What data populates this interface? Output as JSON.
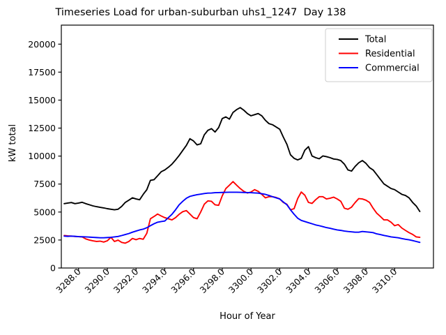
{
  "figure": {
    "title": "Timeseries Load for urban-suburban uhs1_1247  Day 138",
    "xlabel": "Hour of Year",
    "ylabel": "kW total"
  },
  "chart_data": {
    "type": "line",
    "title": "Timeseries Load for urban-suburban uhs1_1247  Day 138",
    "xlabel": "Hour of Year",
    "ylabel": "kW total",
    "grid": false,
    "legend_position": "upper right",
    "xlim": [
      3286.8,
      3312.7
    ],
    "ylim": [
      0,
      21700
    ],
    "x_tick_values": [
      3288,
      3290,
      3292,
      3294,
      3296,
      3298,
      3300,
      3302,
      3304,
      3306,
      3308,
      3310
    ],
    "x_tick_labels": [
      "3288.0",
      "3290.0",
      "3292.0",
      "3294.0",
      "3296.0",
      "3298.0",
      "3300.0",
      "3302.0",
      "3304.0",
      "3306.0",
      "3308.0",
      "3310.0"
    ],
    "y_tick_values": [
      0,
      2500,
      5000,
      7500,
      10000,
      12500,
      15000,
      17500,
      20000
    ],
    "y_tick_labels": [
      "0",
      "2500",
      "5000",
      "7500",
      "10000",
      "12500",
      "15000",
      "17500",
      "20000"
    ],
    "x": [
      3287,
      3287.25,
      3287.5,
      3287.75,
      3288,
      3288.25,
      3288.5,
      3288.75,
      3289,
      3289.25,
      3289.5,
      3289.75,
      3290,
      3290.25,
      3290.5,
      3290.75,
      3291,
      3291.25,
      3291.5,
      3291.75,
      3292,
      3292.25,
      3292.5,
      3292.75,
      3293,
      3293.25,
      3293.5,
      3293.75,
      3294,
      3294.25,
      3294.5,
      3294.75,
      3295,
      3295.25,
      3295.5,
      3295.75,
      3296,
      3296.25,
      3296.5,
      3296.75,
      3297,
      3297.25,
      3297.5,
      3297.75,
      3298,
      3298.25,
      3298.5,
      3298.75,
      3299,
      3299.25,
      3299.5,
      3299.75,
      3300,
      3300.25,
      3300.5,
      3300.75,
      3301,
      3301.25,
      3301.5,
      3301.75,
      3302,
      3302.25,
      3302.5,
      3302.75,
      3303,
      3303.25,
      3303.5,
      3303.75,
      3304,
      3304.25,
      3304.5,
      3304.75,
      3305,
      3305.25,
      3305.5,
      3305.75,
      3306,
      3306.25,
      3306.5,
      3306.75,
      3307,
      3307.25,
      3307.5,
      3307.75,
      3308,
      3308.25,
      3308.5,
      3308.75,
      3309,
      3309.25,
      3309.5,
      3309.75,
      3310,
      3310.25,
      3310.5,
      3310.75,
      3311,
      3311.25,
      3311.5,
      3311.75
    ],
    "series": [
      {
        "name": "Total",
        "color": "#000000",
        "values": [
          5750,
          5800,
          5850,
          5750,
          5800,
          5870,
          5750,
          5650,
          5550,
          5480,
          5420,
          5370,
          5300,
          5250,
          5200,
          5250,
          5500,
          5860,
          6060,
          6270,
          6170,
          6100,
          6580,
          7000,
          7830,
          7890,
          8240,
          8600,
          8760,
          9000,
          9280,
          9650,
          10050,
          10500,
          10950,
          11550,
          11350,
          11000,
          11100,
          11900,
          12300,
          12450,
          12150,
          12550,
          13350,
          13500,
          13300,
          13900,
          14150,
          14330,
          14100,
          13800,
          13600,
          13700,
          13800,
          13600,
          13200,
          12900,
          12800,
          12600,
          12400,
          11700,
          11050,
          10110,
          9800,
          9660,
          9800,
          10530,
          10840,
          10010,
          9860,
          9760,
          10010,
          9950,
          9860,
          9740,
          9700,
          9600,
          9280,
          8760,
          8660,
          9080,
          9400,
          9600,
          9350,
          8970,
          8760,
          8350,
          7930,
          7520,
          7310,
          7100,
          7000,
          6790,
          6580,
          6480,
          6270,
          5860,
          5540,
          5050
        ]
      },
      {
        "name": "Residential",
        "color": "#ff0000",
        "values": [
          2900,
          2870,
          2850,
          2820,
          2800,
          2780,
          2600,
          2500,
          2430,
          2370,
          2400,
          2320,
          2430,
          2740,
          2370,
          2490,
          2290,
          2220,
          2370,
          2640,
          2530,
          2640,
          2570,
          3100,
          4400,
          4600,
          4820,
          4650,
          4500,
          4400,
          4300,
          4500,
          4800,
          5030,
          5130,
          4820,
          4500,
          4400,
          5000,
          5700,
          6000,
          5960,
          5650,
          5600,
          6450,
          7100,
          7400,
          7720,
          7400,
          7100,
          6850,
          6700,
          6790,
          7000,
          6850,
          6580,
          6270,
          6370,
          6370,
          6300,
          6170,
          5860,
          5690,
          5200,
          5300,
          6200,
          6790,
          6500,
          5860,
          5770,
          6100,
          6370,
          6370,
          6170,
          6230,
          6330,
          6170,
          5960,
          5340,
          5250,
          5440,
          5850,
          6200,
          6170,
          6060,
          5860,
          5340,
          4900,
          4610,
          4300,
          4300,
          4090,
          3780,
          3880,
          3570,
          3360,
          3160,
          3000,
          2780,
          2740
        ]
      },
      {
        "name": "Commercial",
        "color": "#0000ff",
        "values": [
          2850,
          2830,
          2850,
          2830,
          2800,
          2790,
          2780,
          2760,
          2740,
          2720,
          2700,
          2700,
          2720,
          2740,
          2780,
          2820,
          2900,
          2990,
          3080,
          3200,
          3300,
          3400,
          3470,
          3600,
          3780,
          3950,
          4090,
          4150,
          4200,
          4500,
          4800,
          5200,
          5650,
          5960,
          6230,
          6400,
          6480,
          6550,
          6600,
          6650,
          6690,
          6700,
          6730,
          6740,
          6750,
          6760,
          6770,
          6770,
          6770,
          6760,
          6750,
          6740,
          6730,
          6710,
          6690,
          6640,
          6580,
          6480,
          6370,
          6270,
          6170,
          5900,
          5650,
          5200,
          4800,
          4450,
          4250,
          4150,
          4050,
          3950,
          3850,
          3780,
          3700,
          3610,
          3550,
          3470,
          3400,
          3360,
          3300,
          3260,
          3230,
          3200,
          3200,
          3260,
          3230,
          3200,
          3160,
          3050,
          2990,
          2910,
          2850,
          2780,
          2740,
          2700,
          2630,
          2570,
          2520,
          2450,
          2370,
          2290
        ]
      }
    ]
  }
}
